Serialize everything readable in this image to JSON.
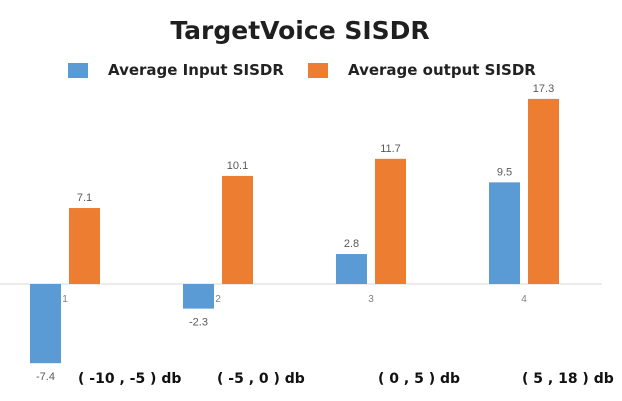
{
  "chart_data": {
    "type": "bar",
    "title": "TargetVoice SISDR",
    "categories": [
      "1",
      "2",
      "3",
      "4"
    ],
    "category_ranges": [
      "( -10 , -5 ) db",
      "( -5 , 0 ) db",
      "( 0 , 5 ) db",
      "( 5 , 18 ) db"
    ],
    "series": [
      {
        "name": "Average Input SISDR",
        "color": "#5b9bd5",
        "values": [
          -7.4,
          -2.3,
          2.8,
          9.5
        ]
      },
      {
        "name": "Average output SISDR",
        "color": "#ed7d31",
        "values": [
          7.1,
          10.1,
          11.7,
          17.3
        ]
      }
    ],
    "value_labels": [
      [
        "-7.4",
        "-2.3",
        "2.8",
        "9.5"
      ],
      [
        "7.1",
        "10.1",
        "11.7",
        "17.3"
      ]
    ],
    "legend_position": "top",
    "grid": false
  }
}
